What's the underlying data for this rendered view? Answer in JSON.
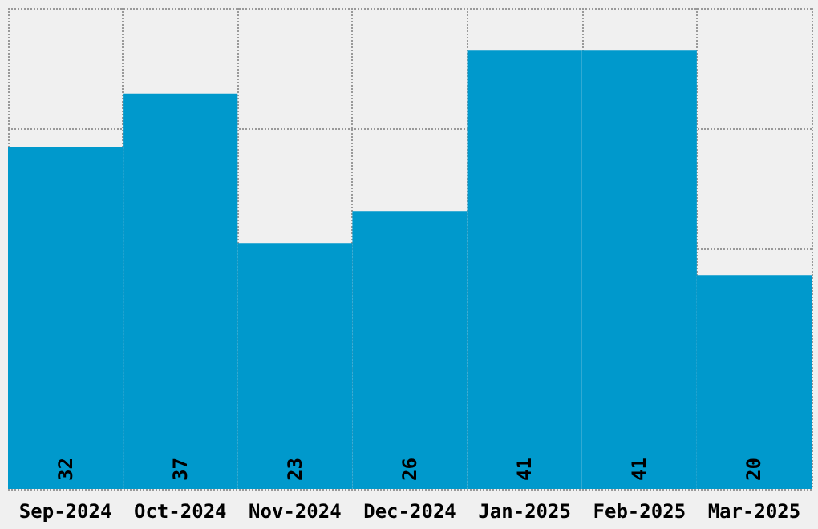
{
  "chart_data": {
    "type": "bar",
    "categories": [
      "Sep-2024",
      "Oct-2024",
      "Nov-2024",
      "Dec-2024",
      "Jan-2025",
      "Feb-2025",
      "Mar-2025"
    ],
    "values": [
      32,
      37,
      23,
      26,
      41,
      41,
      20
    ],
    "color": "#0099cc",
    "ylim": [
      0,
      45
    ],
    "yticks": [
      {
        "value": 0,
        "label": null
      },
      {
        "value": 11.25,
        "label": null
      },
      {
        "value": 22.5,
        "label": null
      },
      {
        "value": 33.75,
        "label": null
      },
      {
        "value": 45,
        "label": null
      }
    ],
    "grid": true,
    "tick_labels": "x",
    "data_labels": true
  }
}
